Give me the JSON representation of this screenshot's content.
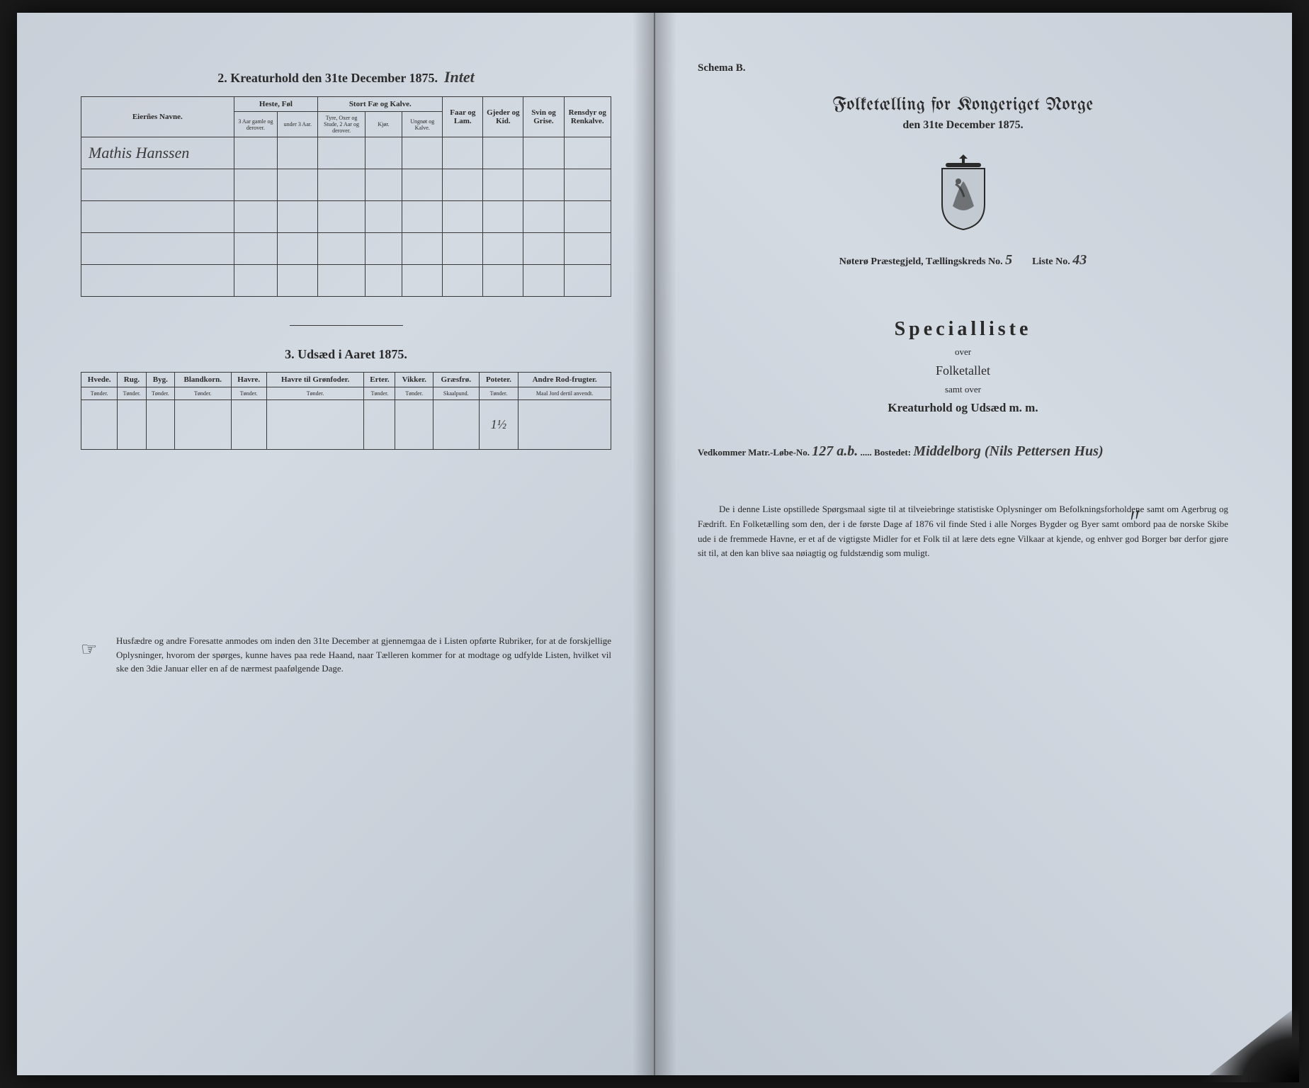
{
  "left": {
    "section2_title": "2.  Kreaturhold den 31te December 1875.",
    "section2_handnote": "Intet",
    "table2": {
      "eier_header": "Eierñes Navne.",
      "groups": [
        {
          "label": "Heste, Føl",
          "subs": [
            {
              "l": "3 Aar gamle og derover."
            },
            {
              "l": "under 3 Aar."
            }
          ]
        },
        {
          "label": "Stort Fæ og Kalve.",
          "subs": [
            {
              "l": "Tyre, Oxer og Stude, 2 Aar og derover."
            },
            {
              "l": "Kjør."
            },
            {
              "l": "Ungnøt og Kalve."
            }
          ]
        },
        {
          "label": "Faar og Lam.",
          "subs": []
        },
        {
          "label": "Gjeder og Kid.",
          "subs": []
        },
        {
          "label": "Svin og Grise.",
          "subs": []
        },
        {
          "label": "Rensdyr og Renkalve.",
          "subs": []
        }
      ],
      "row_name": "Mathis Hanssen"
    },
    "section3_title": "3.  Udsæd i Aaret 1875.",
    "table3": {
      "cols": [
        {
          "h": "Hvede.",
          "s": "Tønder."
        },
        {
          "h": "Rug.",
          "s": "Tønder."
        },
        {
          "h": "Byg.",
          "s": "Tønder."
        },
        {
          "h": "Blandkorn.",
          "s": "Tønder."
        },
        {
          "h": "Havre.",
          "s": "Tønder."
        },
        {
          "h": "Havre til Grønfoder.",
          "s": "Tønder."
        },
        {
          "h": "Erter.",
          "s": "Tønder."
        },
        {
          "h": "Vikker.",
          "s": "Tønder."
        },
        {
          "h": "Græsfrø.",
          "s": "Skaalpund."
        },
        {
          "h": "Poteter.",
          "s": "Tønder."
        },
        {
          "h": "Andre Rod-frugter.",
          "s": "Maal Jord dertil anvendt."
        }
      ],
      "row": [
        "",
        "",
        "",
        "",
        "",
        "",
        "",
        "",
        "",
        "1½",
        ""
      ]
    },
    "footnote": "Husfædre og andre Foresatte anmodes om inden den 31te December at gjennemgaa de i Listen opførte Rubriker, for at de forskjellige Oplysninger, hvorom der spørges, kunne haves paa rede Haand, naar Tælleren kommer for at modtage og udfylde Listen, hvilket vil ske den 3die Januar eller en af de nærmest paafølgende Dage."
  },
  "right": {
    "schema": "Schema B.",
    "main_title": "Folketælling for Kongeriget Norge",
    "main_date": "den 31te December 1875.",
    "meta_prefix": "Nøterø Præstegjeld, Tællingskreds No.",
    "kreds_no": "5",
    "liste_label": "Liste No.",
    "liste_no": "43",
    "special": "Specialliste",
    "over1": "over",
    "folketallet": "Folketallet",
    "samt": "samt over",
    "kreatur": "Kreaturhold og Udsæd m. m.",
    "vedkom_label": "Vedkommer Matr.-Løbe-No.",
    "matr_no": "127 a.b.",
    "bosted_label": "Bostedet:",
    "bosted": "Middelborg (Nils Pettersen Hus)",
    "description": "De i denne Liste opstillede Spørgsmaal sigte til at tilveiebringe statistiske Oplysninger om Befolkningsforholdene samt om Agerbrug og Fædrift.  En Folketælling som den, der i de første Dage af 1876 vil finde Sted i alle Norges Bygder og Byer samt ombord paa de norske Skibe ude i de fremmede Havne, er et af de vigtigste Midler for et Folk til at lære dets egne Vilkaar at kjende, og enhver god Borger bør derfor gjøre sit til, at den kan blive saa nøiagtig og fuldstændig som muligt."
  }
}
